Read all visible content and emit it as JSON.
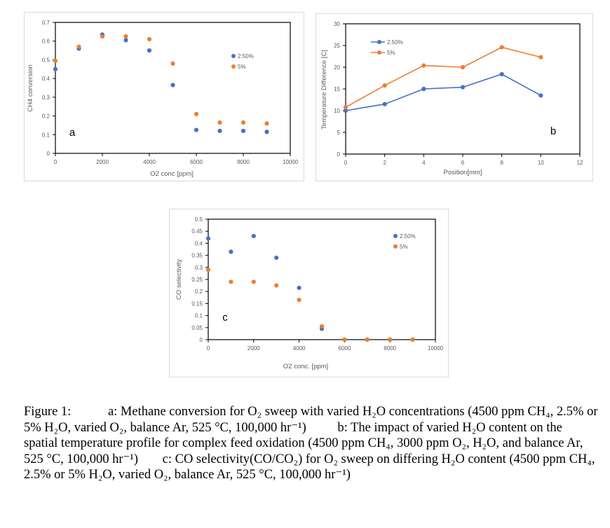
{
  "colors": {
    "s1": "#4472c4",
    "s2": "#ed7d31"
  },
  "chart_data": [
    {
      "id": "a",
      "type": "scatter",
      "panel_label": "a",
      "xlabel": "O2 conc [ppm]",
      "ylabel": "CH4 conversion",
      "xlim": [
        0,
        10000
      ],
      "ylim": [
        0,
        0.7
      ],
      "xticks": [
        0,
        2000,
        4000,
        6000,
        8000,
        10000
      ],
      "yticks": [
        0,
        0.1,
        0.2,
        0.3,
        0.4,
        0.5,
        0.6,
        0.7
      ],
      "ytick_labels": [
        "0",
        "0.1",
        "0.2",
        "0.3",
        "0.4",
        "0.5",
        "0.6",
        "0.7"
      ],
      "legend": "right",
      "series": [
        {
          "name": "2.50%",
          "color": "#4472c4",
          "x": [
            0,
            1000,
            2000,
            3000,
            4000,
            5000,
            6000,
            7000,
            8000,
            9000
          ],
          "y": [
            0.45,
            0.56,
            0.635,
            0.605,
            0.55,
            0.365,
            0.125,
            0.12,
            0.12,
            0.115
          ]
        },
        {
          "name": "5%",
          "color": "#ed7d31",
          "x": [
            0,
            1000,
            2000,
            3000,
            4000,
            5000,
            6000,
            7000,
            8000,
            9000
          ],
          "y": [
            0.495,
            0.57,
            0.625,
            0.625,
            0.61,
            0.48,
            0.21,
            0.165,
            0.165,
            0.16
          ]
        }
      ]
    },
    {
      "id": "b",
      "type": "line",
      "panel_label": "b",
      "xlabel": "Position[mm]",
      "ylabel": "Temperature Difference [C]",
      "xlim": [
        0,
        12
      ],
      "ylim": [
        0,
        30
      ],
      "xticks": [
        0,
        2,
        4,
        6,
        8,
        10,
        12
      ],
      "yticks": [
        0,
        5,
        10,
        15,
        20,
        25,
        30
      ],
      "ytick_labels": [
        "0",
        "5",
        "10",
        "15",
        "20",
        "25",
        "30"
      ],
      "legend": "top-left",
      "series": [
        {
          "name": "2.50%",
          "color": "#4472c4",
          "x": [
            0,
            2,
            4,
            6,
            8,
            10
          ],
          "y": [
            10,
            11.5,
            15,
            15.4,
            18.4,
            13.5
          ]
        },
        {
          "name": "5%",
          "color": "#ed7d31",
          "x": [
            0,
            2,
            4,
            6,
            8,
            10
          ],
          "y": [
            10.8,
            15.8,
            20.4,
            20,
            24.6,
            22.3
          ]
        }
      ]
    },
    {
      "id": "c",
      "type": "scatter",
      "panel_label": "c",
      "xlabel": "O2 conc. [ppm]",
      "ylabel": "CO selectivity",
      "xlim": [
        0,
        10000
      ],
      "ylim": [
        0,
        0.5
      ],
      "xticks": [
        0,
        2000,
        4000,
        6000,
        8000,
        10000
      ],
      "yticks": [
        0,
        0.05,
        0.1,
        0.15,
        0.2,
        0.25,
        0.3,
        0.35,
        0.4,
        0.45,
        0.5
      ],
      "ytick_labels": [
        "0",
        "0.05",
        "0.1",
        "0.15",
        "0.2",
        "0.25",
        "0.3",
        "0.35",
        "0.4",
        "0.45",
        "0.5"
      ],
      "legend": "right",
      "series": [
        {
          "name": "2.50%",
          "color": "#4472c4",
          "x": [
            0,
            1000,
            2000,
            3000,
            4000,
            5000,
            6000,
            7000,
            8000,
            9000
          ],
          "y": [
            0.42,
            0.365,
            0.43,
            0.34,
            0.215,
            0.045,
            0,
            0,
            0,
            0
          ]
        },
        {
          "name": "5%",
          "color": "#ed7d31",
          "x": [
            0,
            1000,
            2000,
            3000,
            4000,
            5000,
            6000,
            7000,
            8000,
            9000
          ],
          "y": [
            0.29,
            0.24,
            0.24,
            0.225,
            0.165,
            0.055,
            0,
            0,
            0,
            0
          ]
        }
      ]
    }
  ],
  "caption": {
    "figure_label": "Figure 1:",
    "a_text": "a: Methane conversion for O₂ sweep with varied H₂O concentrations (4500 ppm CH₄, 2.5% or 5% H₂O, varied O₂, balance Ar, 525 °C, 100,000 hr⁻¹)",
    "b_text": "b: The impact of varied H₂O content on the spatial temperature profile for complex feed oxidation (4500 ppm CH₄, 3000 ppm O₂, H₂O, and balance Ar, 525 °C, 100,000 hr⁻¹)",
    "c_text": "c: CO selectivity(CO/CO₂) for O₂ sweep on differing H₂O content (4500 ppm CH₄, 2.5% or 5% H₂O, varied O₂, balance Ar, 525 °C, 100,000 hr⁻¹)"
  }
}
